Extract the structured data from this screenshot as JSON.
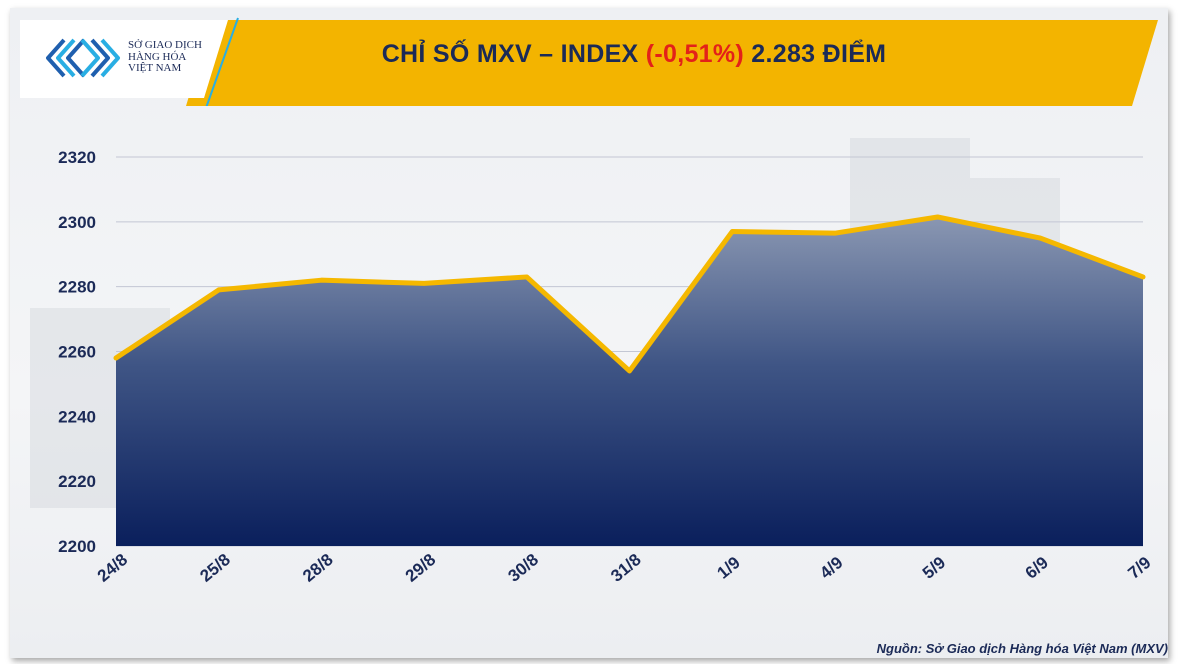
{
  "header": {
    "title_prefix": "CHỈ SỐ MXV – INDEX ",
    "title_change": "(-0,51%)",
    "title_suffix": " 2.283 ĐIỂM",
    "logo_line1": "SỞ GIAO DỊCH",
    "logo_line2": "HÀNG HÓA",
    "logo_line3": "VIỆT NAM"
  },
  "colors": {
    "banner": "#f3b400",
    "title": "#1b2a57",
    "negative": "#e32119",
    "line": "#f5b800",
    "area_top": "#8a97b2",
    "area_bottom": "#0a1f5c"
  },
  "chart_data": {
    "type": "area",
    "x": [
      "24/8",
      "25/8",
      "28/8",
      "29/8",
      "30/8",
      "31/8",
      "1/9",
      "4/9",
      "5/9",
      "6/9",
      "7/9"
    ],
    "values": [
      2258,
      2279,
      2282,
      2281,
      2283,
      2254,
      2297,
      2296.5,
      2301.5,
      2295,
      2283
    ],
    "ylim": [
      2200,
      2320
    ],
    "yticks": [
      "2200",
      "2220",
      "2240",
      "2260",
      "2280",
      "2300",
      "2320"
    ],
    "grid": true
  },
  "footer": {
    "source": "Nguồn: Sở Giao dịch Hàng hóa Việt Nam (MXV)"
  }
}
